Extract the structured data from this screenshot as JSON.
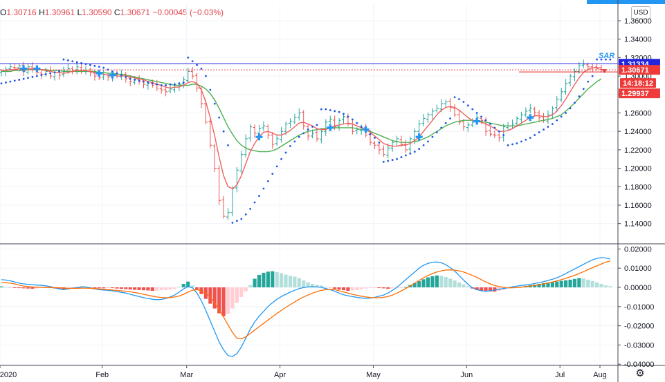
{
  "header": {
    "ohlc": [
      {
        "key": "O",
        "value": "1.30716"
      },
      {
        "key": "H",
        "value": "1.30961"
      },
      {
        "key": "L",
        "value": "1.30590"
      },
      {
        "key": "C",
        "value": "1.30671"
      }
    ],
    "change": "−0.00045 (−0.03%)"
  },
  "currency_button": "USD",
  "chart_data": [
    {
      "type": "candlestick",
      "title": "",
      "x_ticks": [
        "2020",
        "Feb",
        "Mar",
        "Apr",
        "May",
        "Jun",
        "Jul",
        "Aug"
      ],
      "y_ticks": [
        "1.36000",
        "1.34000",
        "1.32000",
        "1.30000",
        "1.28000",
        "1.26000",
        "1.24000",
        "1.22000",
        "1.20000",
        "1.18000",
        "1.16000",
        "1.14000"
      ],
      "ylim": [
        1.126,
        1.378
      ],
      "grid": true,
      "price_labels": [
        {
          "text": "1.31334",
          "value": 1.31334,
          "color": "#2224e0"
        },
        {
          "text": "1.30671",
          "value": 1.30671,
          "color": "#ef3a3a"
        },
        {
          "text": "14:18:12",
          "value": 1.3002,
          "color": "#ef3a3a"
        },
        {
          "text": "1.29937",
          "value": 1.29937,
          "color": "#ef3a3a"
        }
      ],
      "indicator_label": "SAR",
      "closes": [
        1.305,
        1.307,
        1.31,
        1.309,
        1.311,
        1.305,
        1.31,
        1.307,
        1.304,
        1.302,
        1.305,
        1.3,
        1.304,
        1.301,
        1.306,
        1.308,
        1.306,
        1.31,
        1.305,
        1.306,
        1.304,
        1.3,
        1.298,
        1.302,
        1.299,
        1.301,
        1.3,
        1.302,
        1.297,
        1.294,
        1.296,
        1.294,
        1.291,
        1.292,
        1.29,
        1.287,
        1.285,
        1.283,
        1.286,
        1.288,
        1.291,
        1.296,
        1.305,
        1.3,
        1.287,
        1.27,
        1.25,
        1.225,
        1.2,
        1.165,
        1.148,
        1.152,
        1.178,
        1.198,
        1.215,
        1.232,
        1.245,
        1.238,
        1.243,
        1.246,
        1.236,
        1.226,
        1.232,
        1.24,
        1.248,
        1.251,
        1.255,
        1.26,
        1.246,
        1.235,
        1.238,
        1.232,
        1.24,
        1.25,
        1.253,
        1.245,
        1.252,
        1.256,
        1.248,
        1.24,
        1.242,
        1.244,
        1.236,
        1.228,
        1.225,
        1.22,
        1.215,
        1.222,
        1.228,
        1.232,
        1.226,
        1.22,
        1.232,
        1.24,
        1.248,
        1.254,
        1.258,
        1.262,
        1.265,
        1.27,
        1.272,
        1.266,
        1.258,
        1.25,
        1.245,
        1.247,
        1.25,
        1.255,
        1.252,
        1.24,
        1.237,
        1.236,
        1.233,
        1.245,
        1.246,
        1.248,
        1.254,
        1.258,
        1.262,
        1.265,
        1.26,
        1.255,
        1.252,
        1.258,
        1.265,
        1.275,
        1.283,
        1.292,
        1.3,
        1.305,
        1.311,
        1.313,
        1.31,
        1.309,
        1.308,
        1.307
      ],
      "sma_fast": [
        1.306,
        1.306,
        1.307,
        1.307,
        1.308,
        1.308,
        1.308,
        1.308,
        1.308,
        1.307,
        1.306,
        1.305,
        1.304,
        1.304,
        1.303,
        1.304,
        1.305,
        1.306,
        1.306,
        1.306,
        1.305,
        1.304,
        1.303,
        1.302,
        1.301,
        1.301,
        1.3,
        1.3,
        1.3,
        1.299,
        1.298,
        1.297,
        1.296,
        1.294,
        1.293,
        1.291,
        1.29,
        1.288,
        1.287,
        1.288,
        1.288,
        1.29,
        1.293,
        1.294,
        1.292,
        1.285,
        1.272,
        1.255,
        1.235,
        1.212,
        1.192,
        1.18,
        1.178,
        1.182,
        1.192,
        1.205,
        1.218,
        1.227,
        1.234,
        1.239,
        1.24,
        1.238,
        1.236,
        1.236,
        1.238,
        1.241,
        1.245,
        1.249,
        1.25,
        1.248,
        1.246,
        1.243,
        1.242,
        1.242,
        1.244,
        1.246,
        1.247,
        1.248,
        1.249,
        1.248,
        1.246,
        1.244,
        1.242,
        1.239,
        1.235,
        1.231,
        1.227,
        1.225,
        1.224,
        1.224,
        1.225,
        1.225,
        1.227,
        1.23,
        1.234,
        1.24,
        1.246,
        1.252,
        1.258,
        1.263,
        1.266,
        1.267,
        1.266,
        1.263,
        1.259,
        1.255,
        1.252,
        1.251,
        1.25,
        1.248,
        1.246,
        1.243,
        1.24,
        1.24,
        1.241,
        1.243,
        1.246,
        1.249,
        1.252,
        1.255,
        1.257,
        1.257,
        1.256,
        1.256,
        1.258,
        1.262,
        1.268,
        1.275,
        1.283,
        1.291,
        1.298,
        1.304,
        1.307,
        1.309,
        1.309,
        1.309
      ],
      "sma_slow": [
        1.305,
        1.305,
        1.305,
        1.306,
        1.306,
        1.306,
        1.307,
        1.307,
        1.307,
        1.307,
        1.307,
        1.306,
        1.306,
        1.306,
        1.305,
        1.305,
        1.305,
        1.305,
        1.305,
        1.305,
        1.305,
        1.305,
        1.304,
        1.304,
        1.303,
        1.303,
        1.302,
        1.302,
        1.301,
        1.3,
        1.299,
        1.298,
        1.297,
        1.296,
        1.295,
        1.294,
        1.293,
        1.292,
        1.291,
        1.29,
        1.29,
        1.29,
        1.29,
        1.291,
        1.291,
        1.289,
        1.286,
        1.281,
        1.274,
        1.265,
        1.255,
        1.245,
        1.237,
        1.23,
        1.225,
        1.222,
        1.22,
        1.219,
        1.218,
        1.218,
        1.218,
        1.219,
        1.221,
        1.224,
        1.227,
        1.23,
        1.233,
        1.236,
        1.238,
        1.24,
        1.241,
        1.242,
        1.243,
        1.243,
        1.243,
        1.244,
        1.244,
        1.244,
        1.244,
        1.244,
        1.243,
        1.242,
        1.241,
        1.24,
        1.238,
        1.236,
        1.234,
        1.232,
        1.23,
        1.229,
        1.228,
        1.228,
        1.228,
        1.229,
        1.23,
        1.232,
        1.234,
        1.237,
        1.24,
        1.243,
        1.246,
        1.248,
        1.25,
        1.251,
        1.252,
        1.252,
        1.252,
        1.251,
        1.251,
        1.25,
        1.249,
        1.248,
        1.247,
        1.246,
        1.246,
        1.246,
        1.246,
        1.247,
        1.248,
        1.249,
        1.25,
        1.251,
        1.252,
        1.253,
        1.254,
        1.256,
        1.258,
        1.262,
        1.266,
        1.271,
        1.276,
        1.281,
        1.286,
        1.29,
        1.294,
        1.297
      ],
      "psar": [
        1.292,
        1.293,
        1.294,
        1.295,
        1.296,
        1.297,
        1.298,
        1.299,
        1.3,
        1.301,
        1.302,
        1.303,
        1.304,
        1.305,
        1.318,
        1.317,
        1.316,
        1.315,
        1.314,
        1.313,
        1.312,
        1.311,
        1.31,
        1.309,
        1.307,
        1.305,
        1.303,
        1.301,
        1.299,
        1.297,
        1.296,
        1.295,
        1.294,
        1.293,
        1.292,
        1.291,
        1.29,
        1.29,
        1.291,
        1.291,
        1.292,
        1.293,
        1.32,
        1.316,
        1.312,
        1.308,
        1.3,
        1.285,
        1.27,
        1.255,
        1.24,
        1.225,
        1.141,
        1.143,
        1.145,
        1.15,
        1.156,
        1.163,
        1.17,
        1.178,
        1.186,
        1.194,
        1.202,
        1.21,
        1.217,
        1.224,
        1.229,
        1.234,
        1.238,
        1.242,
        1.245,
        1.247,
        1.264,
        1.264,
        1.263,
        1.262,
        1.261,
        1.259,
        1.256,
        1.253,
        1.249,
        1.245,
        1.241,
        1.237,
        1.233,
        1.228,
        1.207,
        1.208,
        1.209,
        1.21,
        1.212,
        1.214,
        1.216,
        1.218,
        1.221,
        1.225,
        1.229,
        1.234,
        1.239,
        1.244,
        1.249,
        1.254,
        1.277,
        1.275,
        1.272,
        1.268,
        1.264,
        1.26,
        1.256,
        1.252,
        1.248,
        1.244,
        1.24,
        1.236,
        1.225,
        1.226,
        1.227,
        1.229,
        1.231,
        1.233,
        1.236,
        1.239,
        1.242,
        1.245,
        1.248,
        1.252,
        1.256,
        1.26,
        1.265,
        1.271,
        1.278,
        1.286,
        1.294,
        1.3,
        1.318,
        1.318,
        1.318,
        1.318
      ]
    },
    {
      "type": "macd",
      "y_ticks": [
        "0.02000",
        "0.01000",
        "0.00000",
        "-0.01000",
        "-0.02000",
        "-0.03000",
        "-0.04000"
      ],
      "ylim": [
        -0.0415,
        0.0215
      ],
      "histogram": [
        0.0005,
        0.0003,
        0.0001,
        -0.0002,
        -0.0004,
        -0.0005,
        -0.0006,
        -0.0007,
        -0.0005,
        -0.0003,
        -0.0001,
        -0.0003,
        -0.0006,
        -0.0008,
        -0.0009,
        -0.0006,
        -0.0004,
        -0.0002,
        0.0003,
        0.0002,
        0.0001,
        -0.0002,
        -0.0004,
        -0.0005,
        -0.0003,
        -0.0004,
        -0.0006,
        -0.0008,
        -0.0009,
        -0.0011,
        -0.0013,
        -0.0014,
        -0.0015,
        -0.0016,
        -0.0018,
        -0.0017,
        -0.0015,
        -0.0013,
        -0.0011,
        -0.0008,
        0.0004,
        0.0018,
        0.003,
        0.001,
        -0.001,
        -0.0035,
        -0.006,
        -0.0085,
        -0.011,
        -0.0135,
        -0.015,
        -0.0138,
        -0.011,
        -0.008,
        -0.005,
        -0.002,
        0.0012,
        0.0045,
        0.0065,
        0.0076,
        0.0082,
        0.0084,
        0.008,
        0.0074,
        0.0066,
        0.006,
        0.0056,
        0.0048,
        0.0036,
        0.0026,
        0.0018,
        0.0013,
        0.001,
        0.0004,
        -0.0002,
        -0.0008,
        -0.0012,
        -0.0015,
        -0.0018,
        -0.0016,
        -0.0014,
        -0.001,
        -0.0006,
        -0.0003,
        -0.0002,
        -0.0003,
        -0.0005,
        -0.0007,
        -0.0005,
        -0.0003,
        -0.0001,
        0.0002,
        0.0012,
        0.0022,
        0.0032,
        0.0042,
        0.0052,
        0.0058,
        0.0062,
        0.006,
        0.0054,
        0.0046,
        0.0036,
        0.0026,
        0.0016,
        0.0006,
        -0.0006,
        -0.0014,
        -0.0018,
        -0.002,
        -0.0021,
        -0.0022,
        -0.0018,
        -0.0012,
        -0.0006,
        -0.0002,
        0.0001,
        0.0004,
        0.0008,
        0.0011,
        0.0014,
        0.0018,
        0.0022,
        0.0025,
        0.0028,
        0.0031,
        0.0034,
        0.0037,
        0.004,
        0.0044,
        0.0048,
        0.0046,
        0.004,
        0.0033,
        0.0026,
        0.0018,
        0.001,
        0.0006
      ],
      "macd_line": [
        0.004,
        0.0038,
        0.0034,
        0.0028,
        0.0022,
        0.0018,
        0.0016,
        0.0014,
        0.0012,
        0.001,
        0.0008,
        0.0004,
        -0.0002,
        -0.0008,
        -0.0012,
        -0.0008,
        -0.0004,
        -0.0001,
        0.0003,
        0.0002,
        -0.0002,
        -0.0008,
        -0.0012,
        -0.0014,
        -0.0016,
        -0.0018,
        -0.0022,
        -0.0026,
        -0.003,
        -0.0036,
        -0.0042,
        -0.0048,
        -0.0054,
        -0.0058,
        -0.0062,
        -0.0064,
        -0.0063,
        -0.0058,
        -0.005,
        -0.004,
        -0.0025,
        -0.0008,
        0.0004,
        -0.0002,
        -0.003,
        -0.007,
        -0.012,
        -0.0175,
        -0.023,
        -0.0285,
        -0.0325,
        -0.0355,
        -0.036,
        -0.0345,
        -0.031,
        -0.0265,
        -0.0218,
        -0.018,
        -0.015,
        -0.0125,
        -0.01,
        -0.008,
        -0.0062,
        -0.0048,
        -0.0036,
        -0.0025,
        -0.0015,
        -0.0007,
        -0.0001,
        0.0002,
        0.0003,
        0.0002,
        0.0,
        -0.0006,
        -0.0012,
        -0.002,
        -0.003,
        -0.0038,
        -0.0044,
        -0.0048,
        -0.0052,
        -0.0055,
        -0.0057,
        -0.0056,
        -0.0052,
        -0.0046,
        -0.004,
        -0.003,
        -0.0015,
        0.0,
        0.002,
        0.004,
        0.006,
        0.008,
        0.01,
        0.0115,
        0.0125,
        0.0131,
        0.0132,
        0.0128,
        0.0118,
        0.0103,
        0.0085,
        0.0062,
        0.0038,
        0.0016,
        -0.0002,
        -0.0012,
        -0.0018,
        -0.002,
        -0.0018,
        -0.0014,
        -0.001,
        -0.0006,
        -0.0002,
        0.0003,
        0.0007,
        0.001,
        0.0013,
        0.0016,
        0.002,
        0.0025,
        0.003,
        0.0036,
        0.0042,
        0.005,
        0.006,
        0.0072,
        0.0084,
        0.0096,
        0.0108,
        0.012,
        0.0132,
        0.0143,
        0.0151,
        0.0155,
        0.0153,
        0.0148
      ],
      "signal_line": [
        0.0025,
        0.0024,
        0.0022,
        0.0018,
        0.0012,
        0.0007,
        0.0004,
        0.0002,
        0.0001,
        0.0,
        -0.0001,
        -0.0001,
        -0.0001,
        -0.0002,
        -0.0004,
        -0.0005,
        -0.0005,
        -0.0005,
        -0.0004,
        -0.0004,
        -0.0005,
        -0.0006,
        -0.0008,
        -0.001,
        -0.0012,
        -0.0014,
        -0.0016,
        -0.0018,
        -0.002,
        -0.0023,
        -0.0027,
        -0.0031,
        -0.0036,
        -0.0041,
        -0.0046,
        -0.005,
        -0.0053,
        -0.0054,
        -0.0053,
        -0.005,
        -0.0045,
        -0.0036,
        -0.0025,
        -0.0015,
        -0.0012,
        -0.0018,
        -0.003,
        -0.005,
        -0.008,
        -0.0115,
        -0.0155,
        -0.0195,
        -0.0235,
        -0.0265,
        -0.0268,
        -0.0258,
        -0.024,
        -0.0222,
        -0.0205,
        -0.0188,
        -0.017,
        -0.0153,
        -0.0136,
        -0.012,
        -0.0104,
        -0.009,
        -0.0076,
        -0.0062,
        -0.005,
        -0.004,
        -0.003,
        -0.0022,
        -0.0016,
        -0.0012,
        -0.001,
        -0.0012,
        -0.0018,
        -0.0024,
        -0.003,
        -0.0036,
        -0.0041,
        -0.0046,
        -0.005,
        -0.0053,
        -0.0054,
        -0.0054,
        -0.0052,
        -0.0048,
        -0.004,
        -0.003,
        -0.0018,
        -0.0006,
        0.0008,
        0.0022,
        0.0036,
        0.005,
        0.0062,
        0.0072,
        0.008,
        0.0086,
        0.009,
        0.0091,
        0.009,
        0.0086,
        0.008,
        0.0072,
        0.0062,
        0.0052,
        0.004,
        0.0028,
        0.0018,
        0.001,
        0.0004,
        0.0,
        -0.0002,
        -0.0002,
        -0.0001,
        0.0001,
        0.0004,
        0.0007,
        0.001,
        0.0014,
        0.0018,
        0.0023,
        0.0028,
        0.0034,
        0.004,
        0.0047,
        0.0055,
        0.0063,
        0.0072,
        0.0082,
        0.0092,
        0.0102,
        0.0112,
        0.0122,
        0.0131,
        0.0138
      ]
    }
  ]
}
